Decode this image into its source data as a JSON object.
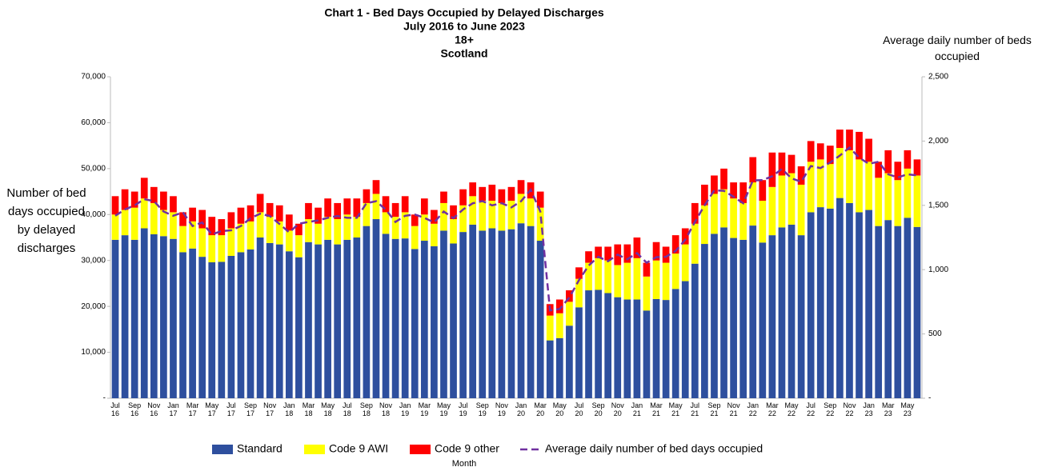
{
  "chart_data": {
    "type": "bar",
    "stacked": true,
    "title": "Chart 1 - Bed Days Occupied by Delayed Discharges",
    "subtitle": [
      "July 2016 to June 2023",
      "18+",
      "Scotland"
    ],
    "ylabel": "Number of bed days occupied by delayed discharges",
    "y2label": "Average daily number of beds occupied",
    "xlabel": "Month",
    "categories": [
      "Jul 16",
      null,
      "Sep 16",
      null,
      "Nov 16",
      null,
      "Jan 17",
      null,
      "Mar 17",
      null,
      "May 17",
      null,
      "Jul 17",
      null,
      "Sep 17",
      null,
      "Nov 17",
      null,
      "Jan 18",
      null,
      "Mar 18",
      null,
      "May 18",
      null,
      "Jul 18",
      null,
      "Sep 18",
      null,
      "Nov 18",
      null,
      "Jan 19",
      null,
      "Mar 19",
      null,
      "May 19",
      null,
      "Jul 19",
      null,
      "Sep 19",
      null,
      "Nov 19",
      null,
      "Jan 20",
      null,
      "Mar 20",
      null,
      "May 20",
      null,
      "Jul 20",
      null,
      "Sep 20",
      null,
      "Nov 20",
      null,
      "Jan 21",
      null,
      "Mar 21",
      null,
      "May 21",
      null,
      "Jul 21",
      null,
      "Sep 21",
      null,
      "Nov 21",
      null,
      "Jan 22",
      null,
      "Mar 22",
      null,
      "May 22",
      null,
      "Jul 22",
      null,
      "Sep 22",
      null,
      "Nov 22",
      null,
      "Jan 23",
      null,
      "Mar 23",
      null,
      "May 23",
      null
    ],
    "series": [
      {
        "name": "Standard",
        "color": "#2e4f9e",
        "type": "bar",
        "values": [
          34500,
          35500,
          34500,
          37000,
          35700,
          35300,
          34700,
          31800,
          32600,
          30800,
          29600,
          29700,
          31000,
          31800,
          32400,
          35000,
          33800,
          33500,
          32000,
          30700,
          34000,
          33500,
          34500,
          33500,
          34500,
          35000,
          37500,
          39000,
          35800,
          34700,
          34800,
          32500,
          34300,
          33100,
          36500,
          33700,
          36200,
          37800,
          36500,
          37000,
          36500,
          36800,
          38100,
          37500,
          34300,
          12600,
          13100,
          15800,
          19800,
          23500,
          23600,
          22900,
          22000,
          21500,
          21500,
          19100,
          21600,
          21400,
          23800,
          25500,
          29300,
          33600,
          35800,
          37200,
          34900,
          34500,
          37600,
          33900,
          35500,
          37200,
          37800,
          35500,
          40500,
          41600,
          41300,
          43600,
          42500,
          40500,
          41000,
          37500,
          38800,
          37500,
          39300,
          37300
        ]
      },
      {
        "name": "Code 9 AWI",
        "color": "#ffff00",
        "type": "bar",
        "values": [
          5500,
          5500,
          7000,
          6500,
          6800,
          5700,
          5800,
          5700,
          5900,
          6200,
          5900,
          5800,
          6000,
          6200,
          6100,
          5500,
          5700,
          5000,
          4500,
          4800,
          5000,
          4500,
          5000,
          5500,
          5500,
          4500,
          5000,
          5500,
          4700,
          4800,
          5700,
          5000,
          5700,
          4900,
          6000,
          5300,
          5800,
          6200,
          6500,
          6000,
          6000,
          6200,
          6400,
          6000,
          7200,
          5400,
          5400,
          5200,
          6200,
          6000,
          6900,
          7100,
          7000,
          8000,
          9000,
          7400,
          8400,
          8100,
          7700,
          8000,
          8700,
          8400,
          8700,
          8300,
          8600,
          8000,
          9400,
          9100,
          10500,
          11300,
          11200,
          11000,
          11000,
          10400,
          9700,
          10900,
          11500,
          11500,
          10500,
          10500,
          10200,
          10000,
          10700,
          11200
        ]
      },
      {
        "name": "Code 9 other",
        "color": "#ff0000",
        "type": "bar",
        "values": [
          4000,
          4500,
          3500,
          4500,
          3500,
          4000,
          3500,
          3000,
          3000,
          4000,
          4000,
          3500,
          3500,
          3500,
          3500,
          4000,
          3000,
          3500,
          3500,
          2500,
          3500,
          3500,
          4000,
          3500,
          3500,
          4000,
          3000,
          3000,
          3500,
          3000,
          3500,
          2500,
          3500,
          3000,
          2500,
          3000,
          3500,
          3000,
          3000,
          3500,
          3000,
          3000,
          3000,
          3500,
          3500,
          2500,
          3000,
          2500,
          2500,
          2500,
          2500,
          3000,
          4500,
          4000,
          4500,
          3000,
          4000,
          3500,
          4000,
          3500,
          4500,
          4500,
          4000,
          4500,
          3500,
          4500,
          5500,
          4500,
          7500,
          5000,
          4000,
          4000,
          4500,
          3500,
          4000,
          4000,
          4500,
          6000,
          5000,
          3500,
          5000,
          4000,
          4000,
          3500
        ]
      },
      {
        "name": "Average daily number of bed days occupied",
        "color": "#7030a0",
        "type": "line",
        "axis": "y2",
        "values": [
          1419,
          1468,
          1500,
          1548,
          1533,
          1452,
          1419,
          1446,
          1339,
          1367,
          1274,
          1300,
          1306,
          1339,
          1400,
          1435,
          1417,
          1355,
          1290,
          1357,
          1371,
          1383,
          1403,
          1417,
          1403,
          1403,
          1517,
          1532,
          1467,
          1371,
          1419,
          1429,
          1403,
          1367,
          1452,
          1400,
          1468,
          1516,
          1533,
          1500,
          1517,
          1484,
          1532,
          1621,
          1452,
          683,
          694,
          783,
          919,
          1032,
          1100,
          1065,
          1117,
          1081,
          1129,
          1054,
          1097,
          1100,
          1145,
          1233,
          1371,
          1500,
          1617,
          1613,
          1567,
          1516,
          1694,
          1696,
          1726,
          1783,
          1710,
          1683,
          1806,
          1790,
          1833,
          1887,
          1950,
          1871,
          1823,
          1839,
          1742,
          1717,
          1742,
          1733
        ]
      }
    ],
    "ylim": [
      0,
      70000
    ],
    "yticks": [
      {
        "value": 0,
        "label": "-"
      },
      {
        "value": 10000,
        "label": "10,000"
      },
      {
        "value": 20000,
        "label": "20,000"
      },
      {
        "value": 30000,
        "label": "30,000"
      },
      {
        "value": 40000,
        "label": "40,000"
      },
      {
        "value": 50000,
        "label": "50,000"
      },
      {
        "value": 60000,
        "label": "60,000"
      },
      {
        "value": 70000,
        "label": "70,000"
      }
    ],
    "y2lim": [
      0,
      2500
    ],
    "y2ticks": [
      {
        "value": 0,
        "label": "-"
      },
      500,
      {
        "value": 1000,
        "label": "1,000"
      },
      {
        "value": 1500,
        "label": "1,500"
      },
      {
        "value": 2000,
        "label": "2,000"
      },
      {
        "value": 2500,
        "label": "2,500"
      }
    ],
    "grid": false,
    "legend": "bottom"
  }
}
